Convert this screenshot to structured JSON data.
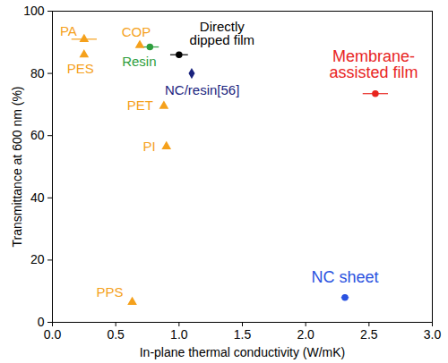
{
  "chart_data": {
    "type": "scatter",
    "x_label": "In-plane thermal conductivity (W/mK)",
    "y_label": "Transmittance at 600 nm (%)",
    "xlim": [
      0,
      3
    ],
    "ylim": [
      0,
      100
    ],
    "xticks": [
      {
        "value": 0,
        "label": "0.0"
      },
      {
        "value": 0.5,
        "label": "0.5"
      },
      {
        "value": 1,
        "label": "1.0"
      },
      {
        "value": 1.5,
        "label": "1.5"
      },
      {
        "value": 2,
        "label": "2.0"
      },
      {
        "value": 2.5,
        "label": "2.5"
      },
      {
        "value": 3,
        "label": "3.0"
      }
    ],
    "yticks": [
      0,
      20,
      40,
      60,
      80,
      100
    ],
    "grid": false,
    "series": [
      {
        "name": "PA",
        "color": "#f5a11c",
        "marker": "triangle",
        "x": [
          0.25
        ],
        "y": [
          91
        ],
        "x_error": [
          0.1
        ]
      },
      {
        "name": "COP",
        "color": "#f5a11c",
        "marker": "triangle",
        "x": [
          0.69
        ],
        "y": [
          89
        ],
        "x_error": [
          null
        ]
      },
      {
        "name": "PES",
        "color": "#f5a11c",
        "marker": "triangle",
        "x": [
          0.25
        ],
        "y": [
          86
        ],
        "x_error": [
          null
        ]
      },
      {
        "name": "PET",
        "color": "#f5a11c",
        "marker": "triangle",
        "x": [
          0.88
        ],
        "y": [
          69.5
        ],
        "x_error": [
          null
        ]
      },
      {
        "name": "PI",
        "color": "#f5a11c",
        "marker": "triangle",
        "x": [
          0.9
        ],
        "y": [
          56.5
        ],
        "x_error": [
          null
        ]
      },
      {
        "name": "PPS",
        "color": "#f5a11c",
        "marker": "triangle",
        "x": [
          0.63
        ],
        "y": [
          6.5
        ],
        "x_error": [
          null
        ]
      },
      {
        "name": "Resin",
        "color": "#2e9e3e",
        "marker": "circle",
        "x": [
          0.77
        ],
        "y": [
          88.5
        ],
        "x_error": [
          0.07
        ]
      },
      {
        "name": "Directly dipped film",
        "color": "#000000",
        "marker": "circle",
        "x": [
          1.0
        ],
        "y": [
          86
        ],
        "x_error": [
          0.07
        ]
      },
      {
        "name": "NC/resin[56]",
        "color": "#1a237e",
        "marker": "diamond",
        "x": [
          1.1
        ],
        "y": [
          80
        ],
        "x_error": [
          null
        ]
      },
      {
        "name": "Membrane-assisted film",
        "color": "#e8251f",
        "marker": "circle",
        "x": [
          2.55
        ],
        "y": [
          73.5
        ],
        "x_error": [
          0.1
        ]
      },
      {
        "name": "NC sheet",
        "color": "#2a52e0",
        "marker": "circle",
        "x": [
          2.31
        ],
        "y": [
          8
        ],
        "x_error": [
          0.03
        ]
      }
    ]
  }
}
